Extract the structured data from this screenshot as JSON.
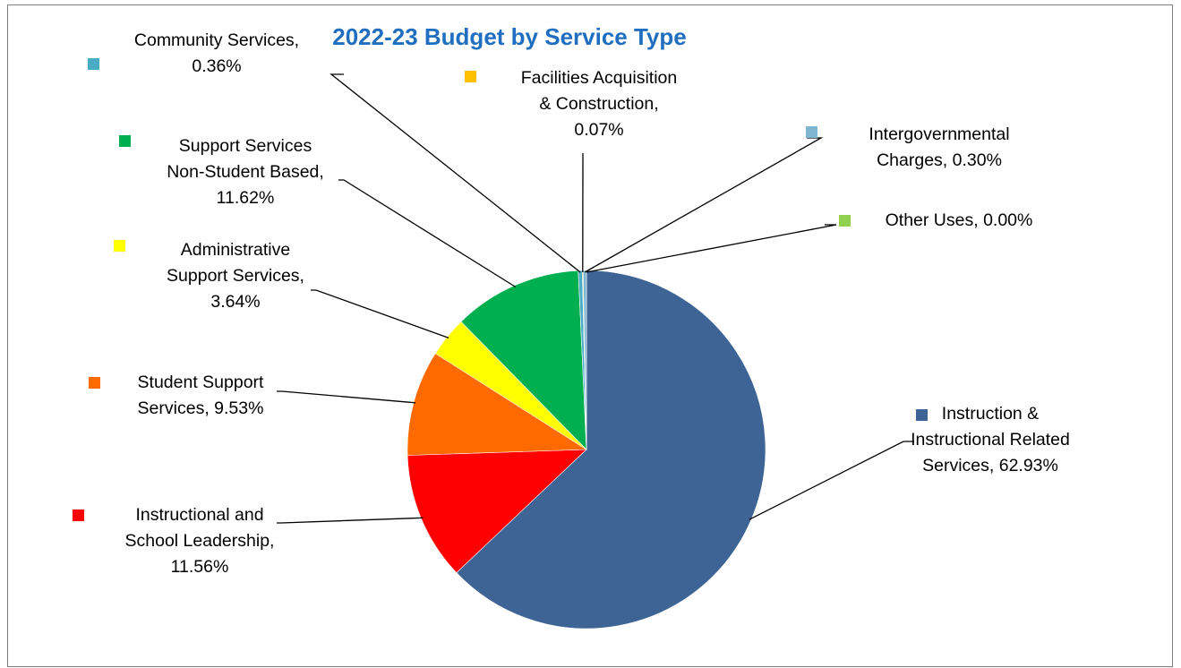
{
  "chart_data": {
    "type": "pie",
    "title": "2022-23 Budget by Service Type",
    "title_color": "#1f6ebf",
    "slices": [
      {
        "name": "Instruction & Instructional Related Services",
        "value": 62.93,
        "color": "#3e6496",
        "label_lines": [
          "Instruction &",
          "Instructional Related",
          "Services, 62.93%"
        ]
      },
      {
        "name": "Instructional and School Leadership",
        "value": 11.56,
        "color": "#ff0000",
        "label_lines": [
          "Instructional and",
          "School Leadership,",
          "11.56%"
        ]
      },
      {
        "name": "Student Support Services",
        "value": 9.53,
        "color": "#ff6a00",
        "label_lines": [
          "Student Support",
          "Services, 9.53%"
        ]
      },
      {
        "name": "Administrative Support Services",
        "value": 3.64,
        "color": "#ffff00",
        "label_lines": [
          "Administrative",
          "Support Services,",
          "3.64%"
        ]
      },
      {
        "name": "Support Services Non-Student Based",
        "value": 11.62,
        "color": "#00b050",
        "label_lines": [
          "Support Services",
          "Non-Student Based,",
          "11.62%"
        ]
      },
      {
        "name": "Community Services",
        "value": 0.36,
        "color": "#4bacc6",
        "label_lines": [
          "Community Services,",
          "0.36%"
        ]
      },
      {
        "name": "Facilities Acquisition & Construction",
        "value": 0.07,
        "color": "#ffc000",
        "label_lines": [
          "Facilities Acquisition",
          "& Construction,",
          "0.07%"
        ]
      },
      {
        "name": "Intergovernmental Charges",
        "value": 0.3,
        "color": "#7fb6d2",
        "label_lines": [
          "Intergovernmental",
          "Charges, 0.30%"
        ]
      },
      {
        "name": "Other Uses",
        "value": 0.0,
        "color": "#92d050",
        "label_lines": [
          "Other Uses, 0.00%"
        ]
      }
    ]
  }
}
